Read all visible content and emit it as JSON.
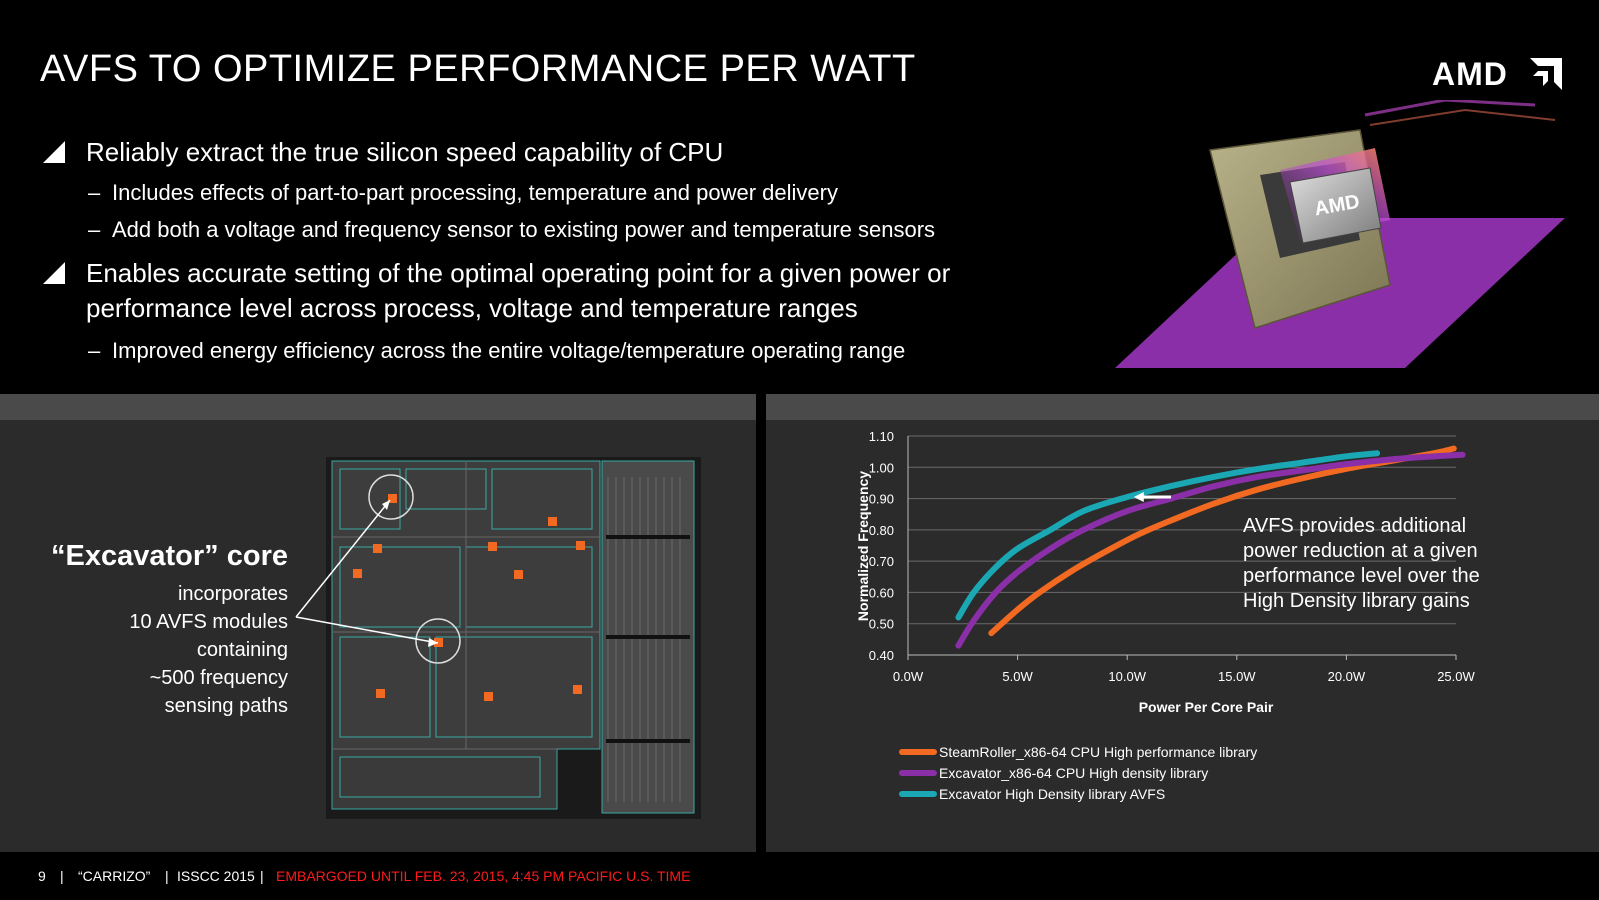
{
  "slide": {
    "title": "AVFS TO OPTIMIZE PERFORMANCE PER WATT",
    "logo_text": "AMD",
    "chip_label": "AMD"
  },
  "bullets": [
    {
      "text": "Reliably extract the true silicon speed capability of CPU",
      "subs": [
        "Includes effects of part-to-part processing, temperature and power delivery",
        "Add both a voltage and frequency sensor to existing power and temperature sensors"
      ]
    },
    {
      "line1": "Enables accurate setting of the optimal operating point for a given power or",
      "line2": "performance level across process, voltage and temperature ranges",
      "subs": [
        "Improved energy efficiency across the entire voltage/temperature operating range"
      ]
    }
  ],
  "sub_bullet_marker": "–",
  "core": {
    "title": "“Excavator” core",
    "lines": [
      "incorporates",
      "10 AVFS modules",
      "containing",
      "~500 frequency",
      "sensing paths"
    ]
  },
  "chart_data": {
    "type": "line",
    "title": "",
    "xlabel": "Power Per Core Pair",
    "ylabel": "Normalized Frequency",
    "xlim": [
      0,
      25
    ],
    "ylim": [
      0.4,
      1.1
    ],
    "x_ticks": [
      "0.0W",
      "5.0W",
      "10.0W",
      "15.0W",
      "20.0W",
      "25.0W"
    ],
    "y_ticks": [
      "0.40",
      "0.50",
      "0.60",
      "0.70",
      "0.80",
      "0.90",
      "1.00",
      "1.10"
    ],
    "grid": "horizontal",
    "legend_position": "bottom",
    "series": [
      {
        "name": "SteamRoller_x86-64 CPU High performance library",
        "color": "#f26a21",
        "x": [
          3.8,
          5,
          6,
          7.5,
          9,
          10.5,
          12,
          14,
          16,
          18,
          20,
          22,
          24,
          24.9
        ],
        "y": [
          0.47,
          0.545,
          0.6,
          0.67,
          0.73,
          0.785,
          0.83,
          0.885,
          0.93,
          0.965,
          0.995,
          1.02,
          1.045,
          1.06
        ]
      },
      {
        "name": "Excavator_x86-64 CPU High density library",
        "color": "#8b2fa8",
        "x": [
          2.3,
          3,
          4,
          5,
          6.5,
          8,
          10,
          12,
          14,
          16,
          18,
          20,
          22,
          24,
          25.3
        ],
        "y": [
          0.43,
          0.51,
          0.6,
          0.665,
          0.74,
          0.8,
          0.86,
          0.9,
          0.94,
          0.97,
          0.99,
          1.01,
          1.025,
          1.035,
          1.04
        ]
      },
      {
        "name": "Excavator High Density library AVFS",
        "color": "#1aa8b4",
        "x": [
          2.3,
          3,
          4,
          5,
          6.5,
          8,
          10,
          12,
          14,
          16,
          18,
          20,
          21.4
        ],
        "y": [
          0.52,
          0.6,
          0.68,
          0.74,
          0.8,
          0.86,
          0.905,
          0.94,
          0.97,
          0.995,
          1.015,
          1.035,
          1.045
        ]
      }
    ],
    "annotation": {
      "lines": [
        "AVFS provides additional",
        "power reduction at a given",
        "performance level  over the",
        "High Density library gains"
      ],
      "arrow_from": [
        12.0,
        0.905
      ],
      "arrow_to": [
        10.3,
        0.905
      ]
    }
  },
  "footer": {
    "page": "9",
    "sep": "|",
    "product": "“CARRIZO”",
    "event": "ISSCC 2015",
    "embargo": "EMBARGOED UNTIL FEB. 23, 2015, 4:45 PM PACIFIC U.S. TIME"
  },
  "colors": {
    "background": "#000000",
    "panel": "#2b2b2b",
    "band": "#4a4a4a",
    "accent_purple": "#8b2fa8",
    "embargo_red": "#ff1a1a"
  }
}
